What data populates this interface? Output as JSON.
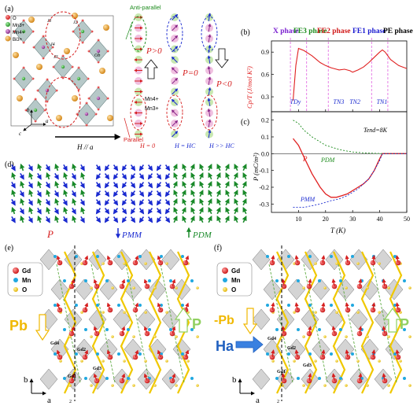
{
  "panels": {
    "a": {
      "label": "(a)",
      "legend": [
        {
          "text": "O",
          "color": "#d62020"
        },
        {
          "text": "Mn3+",
          "color": "#2aa02a"
        },
        {
          "text": "Mn4+",
          "color": "#8b2f8b"
        },
        {
          "text": "Bi3+",
          "color": "#f0a020"
        }
      ],
      "atom_labels": [
        "J1",
        "J2",
        "J3",
        "J4",
        "Ob"
      ],
      "axes": {
        "b": "b",
        "a": "a",
        "c": "c"
      },
      "field_label": "H // a",
      "anti_parallel": "Anti-parallel",
      "parallel": "Parallel",
      "mn4": "Mn4+",
      "mn3": "Mn3+",
      "p_pos": "P>0",
      "p_zero": "P=0",
      "p_neg": "P<0",
      "h0": "H = 0",
      "hc": "H = HC",
      "hgg": "H >> HC"
    },
    "b": {
      "label": "(b)",
      "phases": [
        {
          "name": "X phase",
          "color": "#7a1fd0"
        },
        {
          "name": "FE3 phase",
          "color": "#1a8a1a"
        },
        {
          "name": "FE2 phase",
          "color": "#d01818"
        },
        {
          "name": "FE1 phase",
          "color": "#1818d0"
        },
        {
          "name": "PE phase",
          "color": "#000000"
        }
      ],
      "ylabel": "Cp/T (J/mol K²)",
      "yticks": [
        "0.3",
        "0.6",
        "0.9"
      ],
      "transitions": [
        "TDy",
        "TN3",
        "TN2",
        "TN1"
      ],
      "curve_color": "#e02020"
    },
    "c": {
      "label": "(c)",
      "ylabel": "P (mC/m²)",
      "xlabel": "T (K)",
      "annotation": "Tend=8K",
      "yticks": [
        "0.2",
        "0.1",
        "0.0",
        "-0.1",
        "-0.2",
        "-0.3"
      ],
      "xticks": [
        "10",
        "20",
        "30",
        "40",
        "50"
      ],
      "series_labels": [
        "P",
        "PDM",
        "PMM"
      ]
    },
    "d": {
      "label": "(d)",
      "captions": [
        "P",
        "PMM",
        "PDM"
      ]
    },
    "e": {
      "label": "(e)",
      "legend": [
        "Gd",
        "Mn",
        "O"
      ],
      "pb": "Pb",
      "p": "P",
      "gd_labels": [
        "Gd4",
        "Gd2",
        "Gd3",
        "Gd1"
      ],
      "axis_b": "b",
      "axis_a": "a",
      "two": "2"
    },
    "f": {
      "label": "(f)",
      "legend": [
        "Gd",
        "Mn",
        "O"
      ],
      "pb": "-Pb",
      "p": "P",
      "ha": "Ha",
      "gd_labels": [
        "Gd4",
        "Gd2",
        "Gd3",
        "Gd1"
      ],
      "axis_b": "b",
      "axis_a": "a",
      "two": "2"
    }
  },
  "chart_data": [
    {
      "type": "line",
      "title": "",
      "xlabel": "",
      "ylabel": "Cp/T (J/mol K²)",
      "xlim": [
        0,
        50
      ],
      "ylim": [
        0.1,
        1.05
      ],
      "series": [
        {
          "values_x": [
            8,
            9,
            10,
            12,
            15,
            18,
            20,
            22,
            24,
            25,
            27,
            29,
            30,
            32,
            34,
            36,
            38,
            40,
            41,
            42,
            44,
            47,
            50
          ],
          "values_y": [
            0.25,
            0.72,
            0.95,
            0.92,
            0.85,
            0.76,
            0.72,
            0.69,
            0.67,
            0.66,
            0.67,
            0.65,
            0.63,
            0.66,
            0.7,
            0.76,
            0.83,
            0.9,
            0.93,
            0.9,
            0.8,
            0.72,
            0.68
          ]
        }
      ]
    },
    {
      "type": "line",
      "title": "",
      "xlabel": "T (K)",
      "ylabel": "P (mC/m²)",
      "xlim": [
        0,
        50
      ],
      "ylim": [
        -0.35,
        0.25
      ],
      "series": [
        {
          "name": "P",
          "x": [
            8,
            10,
            12,
            15,
            18,
            20,
            22,
            24,
            26,
            28,
            30,
            32,
            34,
            36,
            38,
            40,
            41,
            42,
            45,
            50
          ],
          "y": [
            0.09,
            0.05,
            -0.02,
            -0.12,
            -0.2,
            -0.24,
            -0.26,
            -0.26,
            -0.25,
            -0.24,
            -0.22,
            -0.2,
            -0.18,
            -0.15,
            -0.1,
            -0.03,
            0.0,
            0.0,
            0.0,
            0.0
          ]
        },
        {
          "name": "PDM",
          "x": [
            8,
            10,
            12,
            15,
            18,
            20,
            22,
            25,
            28,
            30,
            34,
            38,
            42,
            45,
            50
          ],
          "y": [
            0.2,
            0.18,
            0.14,
            0.1,
            0.07,
            0.05,
            0.04,
            0.025,
            0.015,
            0.01,
            0.005,
            0.002,
            0.0,
            0.0,
            0.0
          ]
        },
        {
          "name": "PMM",
          "x": [
            8,
            10,
            12,
            15,
            18,
            20,
            22,
            25,
            28,
            30,
            32,
            34,
            36,
            38,
            40,
            41,
            42,
            45,
            50
          ],
          "y": [
            -0.32,
            -0.32,
            -0.32,
            -0.31,
            -0.3,
            -0.29,
            -0.28,
            -0.27,
            -0.25,
            -0.23,
            -0.21,
            -0.18,
            -0.15,
            -0.1,
            -0.04,
            0.0,
            0.0,
            0.0,
            0.0
          ]
        }
      ]
    }
  ]
}
